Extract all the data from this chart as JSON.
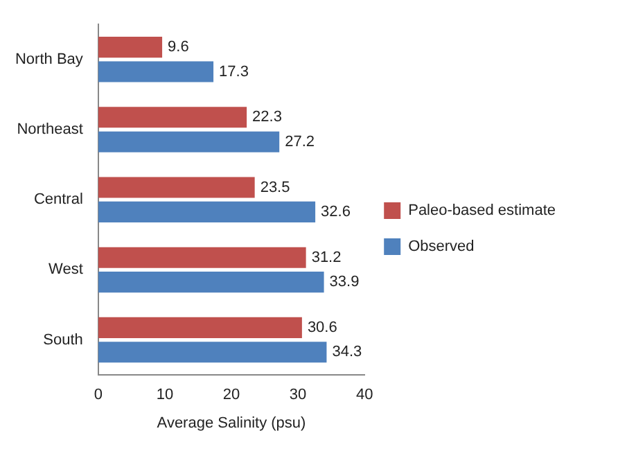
{
  "chart_data": {
    "type": "bar",
    "orientation": "horizontal",
    "xlabel": "Average Salinity (psu)",
    "categories": [
      "North Bay",
      "Northeast",
      "Central",
      "West",
      "South"
    ],
    "series": [
      {
        "name": "Paleo-based estimate",
        "color": "#c0504d",
        "values": [
          9.6,
          22.3,
          23.5,
          31.2,
          30.6
        ]
      },
      {
        "name": "Observed",
        "color": "#4f81bd",
        "values": [
          17.3,
          27.2,
          32.6,
          33.9,
          34.3
        ]
      }
    ],
    "xlim": [
      0,
      40
    ],
    "xticks": [
      0,
      10,
      20,
      30,
      40
    ],
    "grid": false,
    "legend": "right",
    "data_labels": true
  }
}
